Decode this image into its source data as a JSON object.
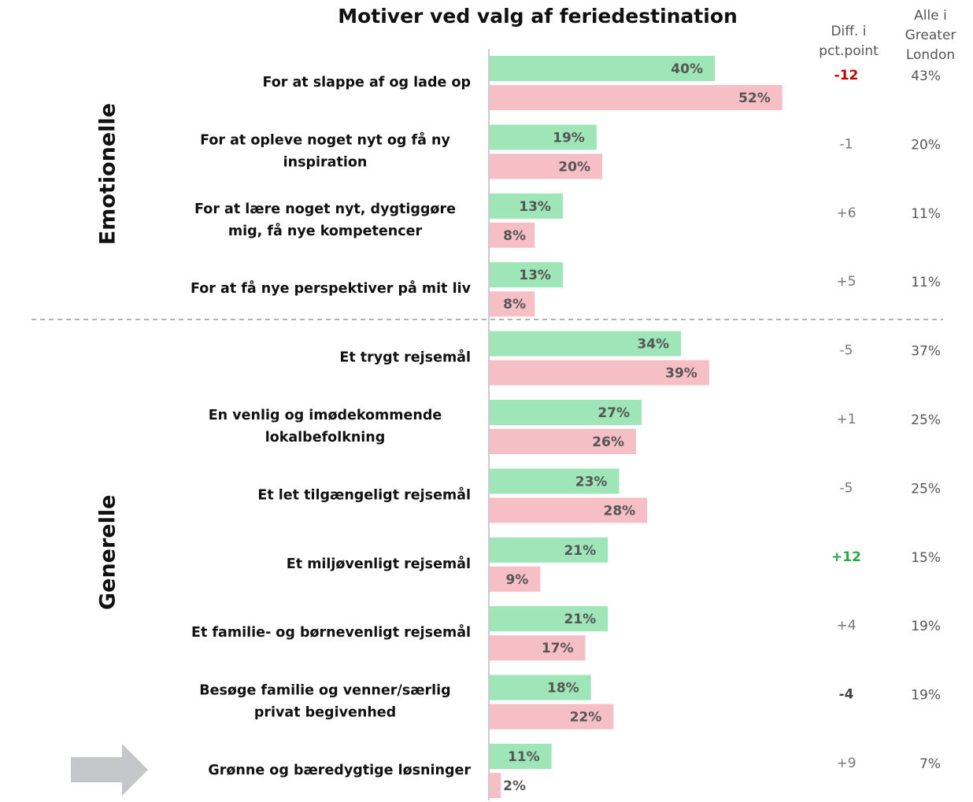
{
  "chart_data": {
    "type": "bar",
    "title": "Motiver ved valg af feriedestination",
    "categories": [
      "For at slappe af og lade op",
      "For at opleve noget nyt og få ny\ninspiration",
      "For at lære noget nyt, dygtiggøre\nmig, få nye kompetencer",
      "For at få nye perspektiver på mit liv",
      "Et trygt rejsemål",
      "En venlig og imødekommende\nlokalbefolkning",
      "Et let tilgængeligt rejsemål",
      "Et miljøvenligt rejsemål",
      "Et familie- og børnevenligt rejsemål",
      "Besøge familie og venner/særlig\nprivat begivenhed",
      "Grønne og bæredygtige løsninger"
    ],
    "group": [
      "Emotionelle",
      "Emotionelle",
      "Emotionelle",
      "Emotionelle",
      "Generelle",
      "Generelle",
      "Generelle",
      "Generelle",
      "Generelle",
      "Generelle",
      "Generelle"
    ],
    "series": [
      {
        "color": "#9ee6b8",
        "values": [
          40,
          19,
          13,
          13,
          34,
          27,
          23,
          21,
          21,
          18,
          11
        ],
        "value_labels": [
          "40%",
          "19%",
          "13%",
          "13%",
          "34%",
          "27%",
          "23%",
          "21%",
          "21%",
          "18%",
          "11%"
        ]
      },
      {
        "color": "#f6bfc6",
        "values": [
          52,
          20,
          8,
          8,
          39,
          26,
          28,
          9,
          17,
          22,
          2
        ],
        "value_labels": [
          "52%",
          "20%",
          "8%",
          "8%",
          "39%",
          "26%",
          "28%",
          "9%",
          "17%",
          "22%",
          "2%"
        ]
      }
    ],
    "diff": {
      "header": "Diff. i\npct.point",
      "values": [
        -12,
        -1,
        6,
        5,
        -5,
        1,
        -5,
        12,
        4,
        -4,
        9
      ],
      "value_labels": [
        "-12",
        "-1",
        "+6",
        "+5",
        "-5",
        "+1",
        "-5",
        "+12",
        "+4",
        "-4",
        "+9"
      ],
      "colors": [
        "#c00000",
        "#777777",
        "#777777",
        "#777777",
        "#777777",
        "#777777",
        "#777777",
        "#22aa44",
        "#777777",
        "#444444",
        "#777777"
      ]
    },
    "london": {
      "header": "Alle i\nGreater\nLondon",
      "values": [
        43,
        20,
        11,
        11,
        37,
        25,
        25,
        15,
        19,
        19,
        7
      ],
      "value_labels": [
        "43%",
        "20%",
        "11%",
        "11%",
        "37%",
        "25%",
        "25%",
        "15%",
        "19%",
        "19%",
        "7%"
      ]
    }
  }
}
